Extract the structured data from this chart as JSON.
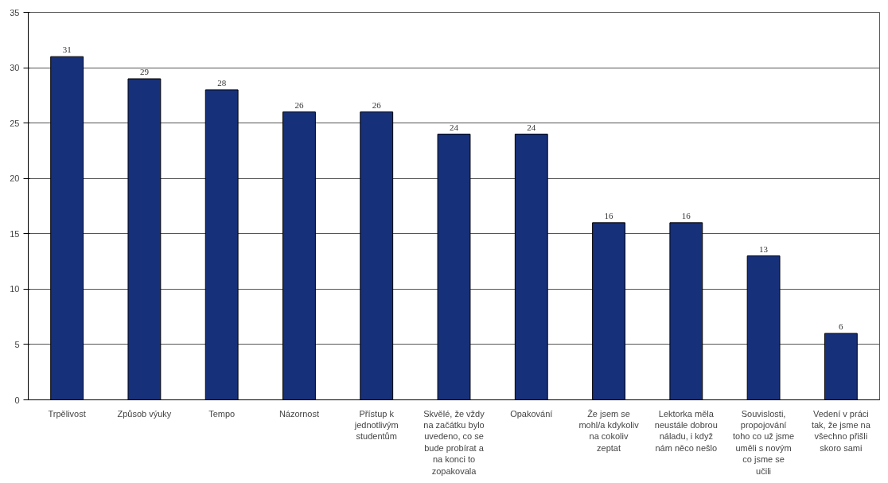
{
  "chart_data": {
    "type": "bar",
    "categories": [
      "Trpělivost",
      "Způsob výuky",
      "Tempo",
      "Názornost",
      "Přístup k jednotlivým studentům",
      "Skvělé, že vždy na začátku bylo uvedeno, co se bude probírat a na konci to zopakovala",
      "Opakování",
      "Že jsem se mohl/a kdykoliv na cokoliv zeptat",
      "Lektorka měla neustále dobrou náladu, i když nám něco nešlo",
      "Souvislosti, propojování toho co už jsme uměli s novým co jsme se učili",
      "Vedení v práci tak, že jsme na všechno přišli skoro sami"
    ],
    "values": [
      31,
      29,
      28,
      26,
      26,
      24,
      24,
      16,
      16,
      13,
      6
    ],
    "color": "#17307a",
    "ylim": [
      0,
      35
    ],
    "yticks": [
      0,
      5,
      10,
      15,
      20,
      25,
      30,
      35
    ],
    "grid": "y",
    "data_labels": true
  }
}
